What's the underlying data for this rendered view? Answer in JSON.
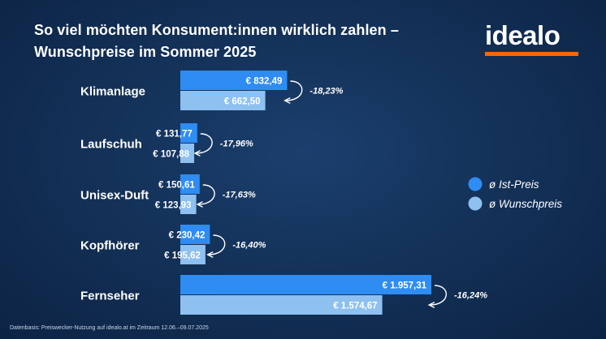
{
  "title": {
    "line1": "So viel möchten Konsument:innen wirklich zahlen –",
    "line2": "Wunschpreise im Sommer 2025"
  },
  "logo": {
    "text": "idealo",
    "accent_color": "#ff6600"
  },
  "footnote": "Datenbasis: Preiswecker-Nutzung auf idealo.at im Zeitraum 12.06.–09.07.2025",
  "colors": {
    "ist": "#2f8cf2",
    "wunsch": "#8ec0f0"
  },
  "chart_data": {
    "type": "bar",
    "orientation": "horizontal",
    "categories": [
      "Klimanlage",
      "Laufschuh",
      "Unisex-Duft",
      "Kopfhörer",
      "Fernseher"
    ],
    "series": [
      {
        "name": "ø Ist-Preis",
        "values": [
          832.49,
          131.77,
          150.61,
          230.42,
          1957.31
        ],
        "labels": [
          "€ 832,49",
          "€ 131,77",
          "€ 150,61",
          "€ 230,42",
          "€ 1.957,31"
        ]
      },
      {
        "name": "ø Wunschpreis",
        "values": [
          662.5,
          107.88,
          123.93,
          195.62,
          1574.67
        ],
        "labels": [
          "€ 662,50",
          "€ 107,88",
          "€ 123,93",
          "€ 195,62",
          "€ 1.574,67"
        ]
      }
    ],
    "changes": [
      "-18,23%",
      "-17,96%",
      "-17,63%",
      "-16,40%",
      "-16,24%"
    ],
    "legend_position": "right",
    "grid": false
  }
}
